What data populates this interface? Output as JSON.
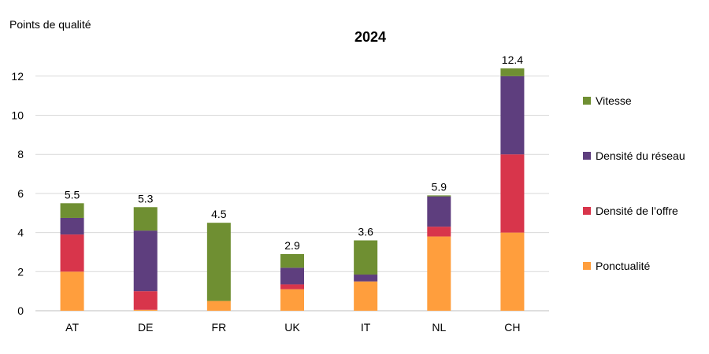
{
  "chart_data": {
    "type": "bar",
    "stacked": true,
    "title": "2024",
    "ylabel": "Points de qualité",
    "xlabel": "",
    "ylim": [
      0,
      13
    ],
    "yticks": [
      0,
      2,
      4,
      6,
      8,
      10,
      12
    ],
    "grid": true,
    "legend_position": "right",
    "categories": [
      "AT",
      "DE",
      "FR",
      "UK",
      "IT",
      "NL",
      "CH"
    ],
    "series": [
      {
        "name": "Ponctualité",
        "color": "#FF9E3D",
        "values": [
          2.0,
          0.05,
          0.5,
          1.1,
          1.5,
          3.8,
          4.0
        ]
      },
      {
        "name": "Densité de l’offre",
        "color": "#D8354B",
        "values": [
          1.9,
          0.95,
          0.0,
          0.25,
          0.0,
          0.5,
          4.0
        ]
      },
      {
        "name": "Densité du réseau",
        "color": "#5E3E7E",
        "values": [
          0.85,
          3.1,
          0.0,
          0.85,
          0.35,
          1.55,
          4.0
        ]
      },
      {
        "name": "Vitesse",
        "color": "#6F8F32",
        "values": [
          0.75,
          1.2,
          4.0,
          0.7,
          1.75,
          0.05,
          0.4
        ]
      }
    ],
    "totals": [
      "5.5",
      "5.3",
      "4.5",
      "2.9",
      "3.6",
      "5.9",
      "12.4"
    ]
  }
}
